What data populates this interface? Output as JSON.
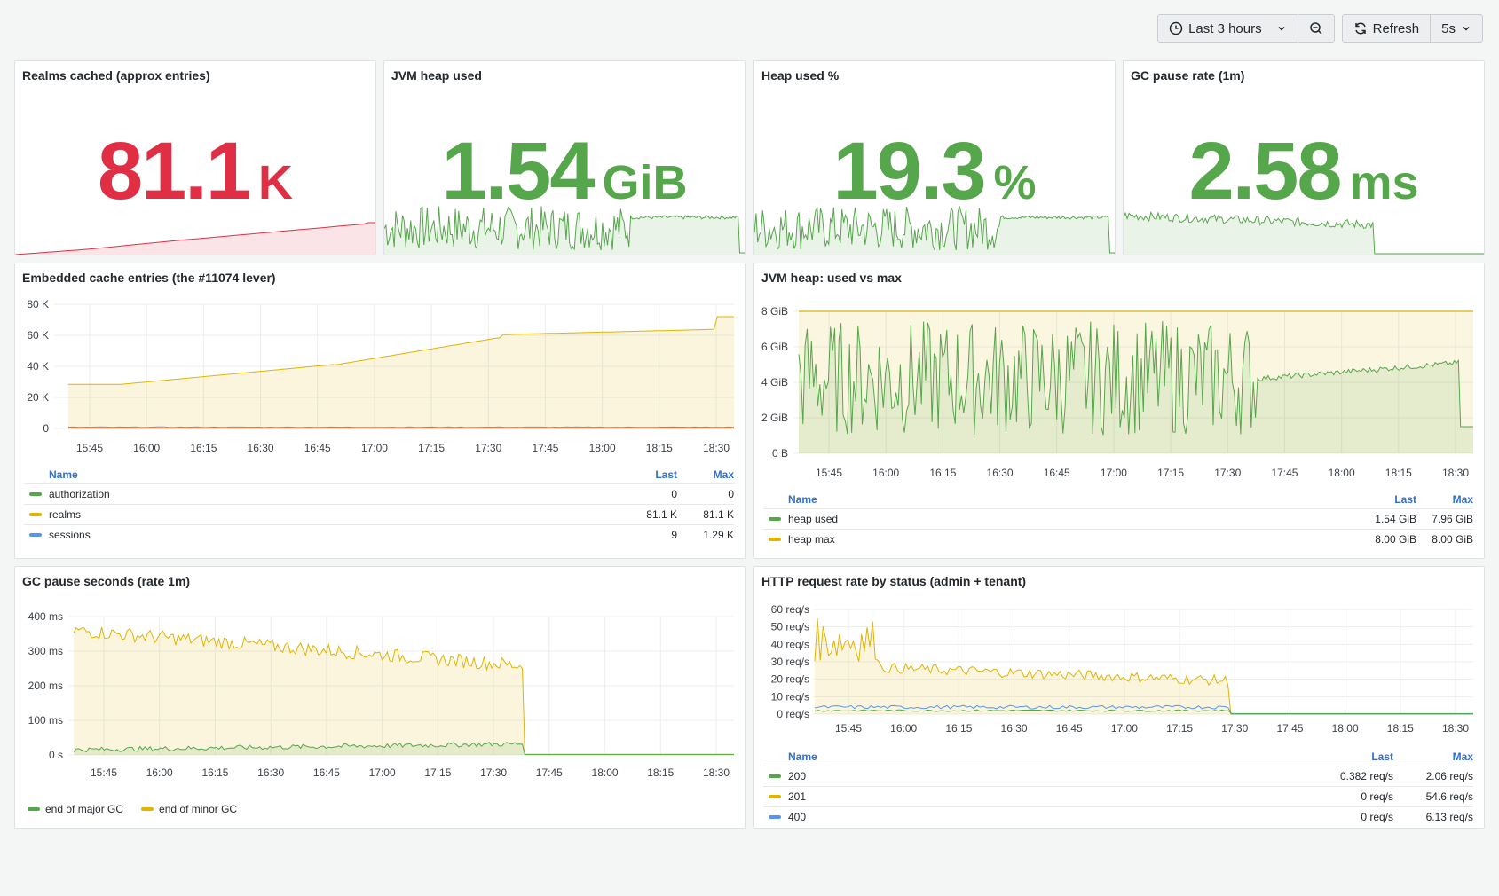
{
  "toolbar": {
    "time_range": "Last 3 hours",
    "refresh_label": "Refresh",
    "refresh_interval": "5s"
  },
  "colors": {
    "red": "#e02f44",
    "green": "#56a64b",
    "yellow": "#e0b400",
    "blue": "#5794f2",
    "orange": "#ff7a2e",
    "link": "#2f6fd4"
  },
  "stats": [
    {
      "title": "Realms cached (approx entries)",
      "value": "81.1",
      "unit": "K",
      "color": "#e02f44"
    },
    {
      "title": "JVM heap used",
      "value": "1.54",
      "unit": "GiB",
      "color": "#56a64b"
    },
    {
      "title": "Heap used %",
      "value": "19.3",
      "unit": "%",
      "color": "#56a64b"
    },
    {
      "title": "GC pause rate (1m)",
      "value": "2.58",
      "unit": "ms",
      "color": "#56a64b"
    }
  ],
  "time_ticks": [
    "15:45",
    "16:00",
    "16:15",
    "16:30",
    "16:45",
    "17:00",
    "17:15",
    "17:30",
    "17:45",
    "18:00",
    "18:15",
    "18:30"
  ],
  "cache_panel": {
    "title": "Embedded cache entries (the #11074 lever)",
    "y_ticks": [
      "0",
      "20 K",
      "40 K",
      "60 K",
      "80 K"
    ],
    "headers": {
      "name": "Name",
      "last": "Last",
      "max": "Max"
    },
    "rows": [
      {
        "name": "authorization",
        "last": "0",
        "max": "0",
        "color": "#56a64b"
      },
      {
        "name": "realms",
        "last": "81.1 K",
        "max": "81.1 K",
        "color": "#e0b400"
      },
      {
        "name": "sessions",
        "last": "9",
        "max": "1.29 K",
        "color": "#5794f2"
      }
    ]
  },
  "heap_panel": {
    "title": "JVM heap: used vs max",
    "y_ticks": [
      "0 B",
      "2 GiB",
      "4 GiB",
      "6 GiB",
      "8 GiB"
    ],
    "headers": {
      "name": "Name",
      "last": "Last",
      "max": "Max"
    },
    "rows": [
      {
        "name": "heap used",
        "last": "1.54 GiB",
        "max": "7.96 GiB",
        "color": "#56a64b"
      },
      {
        "name": "heap max",
        "last": "8.00 GiB",
        "max": "8.00 GiB",
        "color": "#e0b400"
      }
    ]
  },
  "gc_panel": {
    "title": "GC pause seconds (rate 1m)",
    "y_ticks": [
      "0 s",
      "100 ms",
      "200 ms",
      "300 ms",
      "400 ms"
    ],
    "legend": [
      {
        "name": "end of major GC",
        "color": "#56a64b"
      },
      {
        "name": "end of minor GC",
        "color": "#e0b400"
      }
    ]
  },
  "http_panel": {
    "title": "HTTP request rate by status (admin + tenant)",
    "y_ticks": [
      "0 req/s",
      "10 req/s",
      "20 req/s",
      "30 req/s",
      "40 req/s",
      "50 req/s",
      "60 req/s"
    ],
    "headers": {
      "name": "Name",
      "last": "Last",
      "max": "Max"
    },
    "rows": [
      {
        "name": "200",
        "last": "0.382 req/s",
        "max": "2.06 req/s",
        "color": "#56a64b"
      },
      {
        "name": "201",
        "last": "0 req/s",
        "max": "54.6 req/s",
        "color": "#e0b400"
      },
      {
        "name": "400",
        "last": "0 req/s",
        "max": "6.13 req/s",
        "color": "#5794f2"
      }
    ]
  }
}
